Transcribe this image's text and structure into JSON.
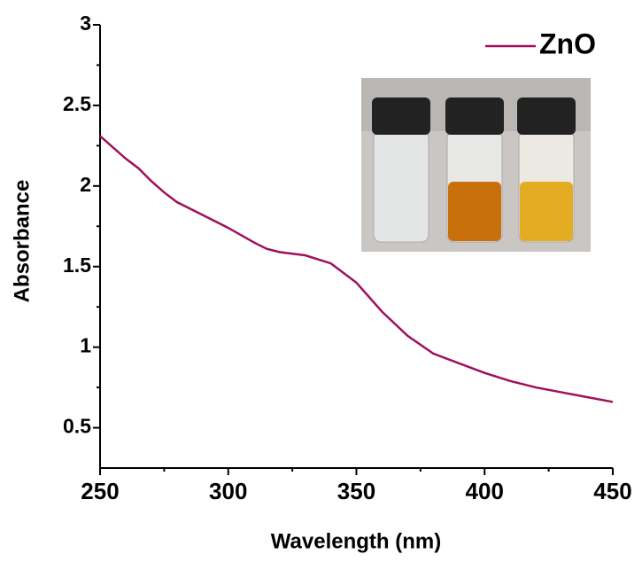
{
  "chart_data": {
    "type": "line",
    "x_label": "Wavelength (nm)",
    "y_label": "Absorbance",
    "x": [
      250,
      255,
      260,
      265,
      270,
      275,
      280,
      290,
      300,
      310,
      315,
      320,
      330,
      340,
      350,
      360,
      370,
      380,
      390,
      400,
      410,
      420,
      430,
      440,
      450
    ],
    "series": [
      {
        "name": "ZnO",
        "color": "#a0105e",
        "values": [
          2.31,
          2.24,
          2.17,
          2.11,
          2.03,
          1.96,
          1.9,
          1.82,
          1.74,
          1.65,
          1.61,
          1.59,
          1.57,
          1.52,
          1.4,
          1.22,
          1.07,
          0.96,
          0.9,
          0.84,
          0.79,
          0.75,
          0.72,
          0.69,
          0.66
        ]
      }
    ],
    "xlim": [
      250,
      450
    ],
    "xticks": [
      250,
      300,
      350,
      400,
      450
    ],
    "ylim": [
      0.25,
      3.0
    ],
    "yticks": [
      0.5,
      1.0,
      1.5,
      2.0,
      2.5,
      3.0
    ],
    "legend": "upper right"
  }
}
